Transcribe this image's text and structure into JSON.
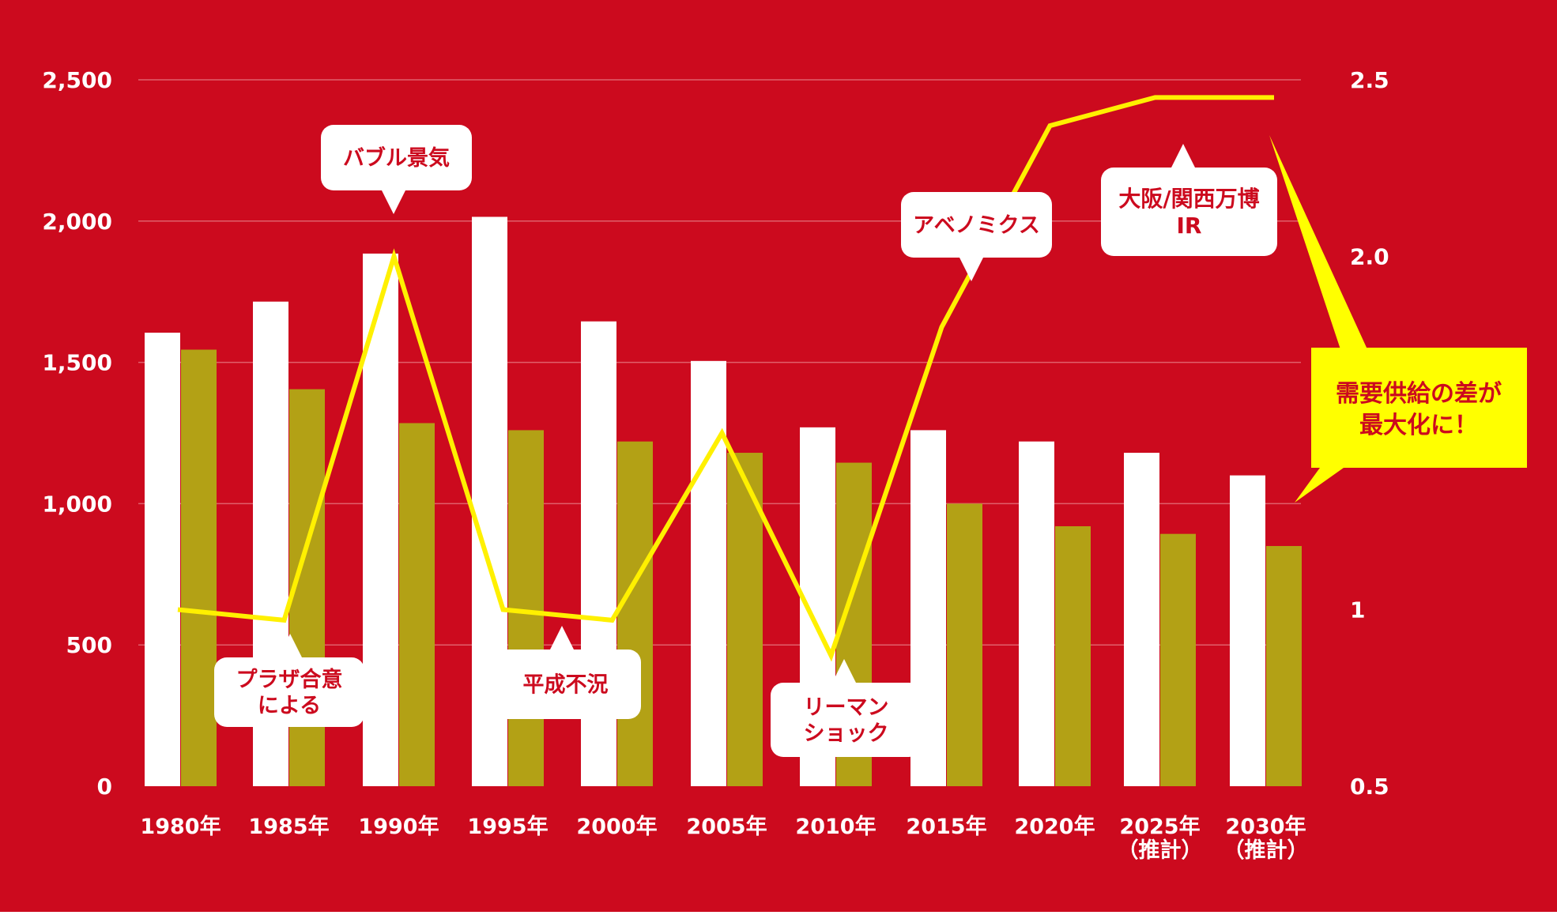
{
  "colors": {
    "background": "#cc0a1e",
    "bar_primary": "#ffffff",
    "bar_secondary": "#b3a115",
    "line": "#fff000",
    "gridline": "#e0606b",
    "callout_bg": "#ffffff",
    "callout_text": "#cc0a1e",
    "highlight_bg": "#ffff00",
    "axis_text": "#ffffff"
  },
  "chart_data": {
    "type": "bar",
    "categories": [
      [
        "1980年"
      ],
      [
        "1985年"
      ],
      [
        "1990年"
      ],
      [
        "1995年"
      ],
      [
        "2000年"
      ],
      [
        "2005年"
      ],
      [
        "2010年"
      ],
      [
        "2015年"
      ],
      [
        "2020年"
      ],
      [
        "2025年",
        "（推計）"
      ],
      [
        "2030年",
        "（推計）"
      ]
    ],
    "series": [
      {
        "values": [
          1605,
          1715,
          1885,
          2015,
          1645,
          1505,
          1270,
          1260,
          1220,
          1180,
          1100
        ]
      },
      {
        "values": [
          1545,
          1405,
          1285,
          1260,
          1220,
          1180,
          1145,
          1000,
          920,
          893,
          850
        ]
      }
    ],
    "line_series": {
      "values": [
        1.0,
        0.97,
        2.0,
        1.0,
        0.97,
        1.5,
        0.87,
        1.8,
        2.37,
        2.45,
        2.45
      ]
    },
    "y_left": {
      "ylim": [
        0,
        2500
      ],
      "ticks": [
        0,
        500,
        1000,
        1500,
        2000,
        2500
      ],
      "tick_labels": [
        "0",
        "500",
        "1,000",
        "1,500",
        "2,000",
        "2,500"
      ]
    },
    "y_right": {
      "ylim": [
        0.5,
        2.5
      ],
      "ticks": [
        0.5,
        1,
        2.0,
        2.5
      ],
      "tick_labels": [
        "0.5",
        "1",
        "2.0",
        "2.5"
      ]
    },
    "grid": true,
    "annotations": [
      {
        "id": "bubble",
        "lines": [
          "バブル景気"
        ]
      },
      {
        "id": "plaza",
        "lines": [
          "プラザ合意",
          "による"
        ]
      },
      {
        "id": "heisei",
        "lines": [
          "平成不況"
        ]
      },
      {
        "id": "lehman",
        "lines": [
          "リーマン",
          "ショック"
        ]
      },
      {
        "id": "abenomics",
        "lines": [
          "アベノミクス"
        ]
      },
      {
        "id": "expo",
        "lines": [
          "大阪/関西万博",
          "IR"
        ]
      }
    ],
    "highlight": {
      "lines": [
        "需要供給の差が",
        "最大化に！"
      ]
    }
  }
}
